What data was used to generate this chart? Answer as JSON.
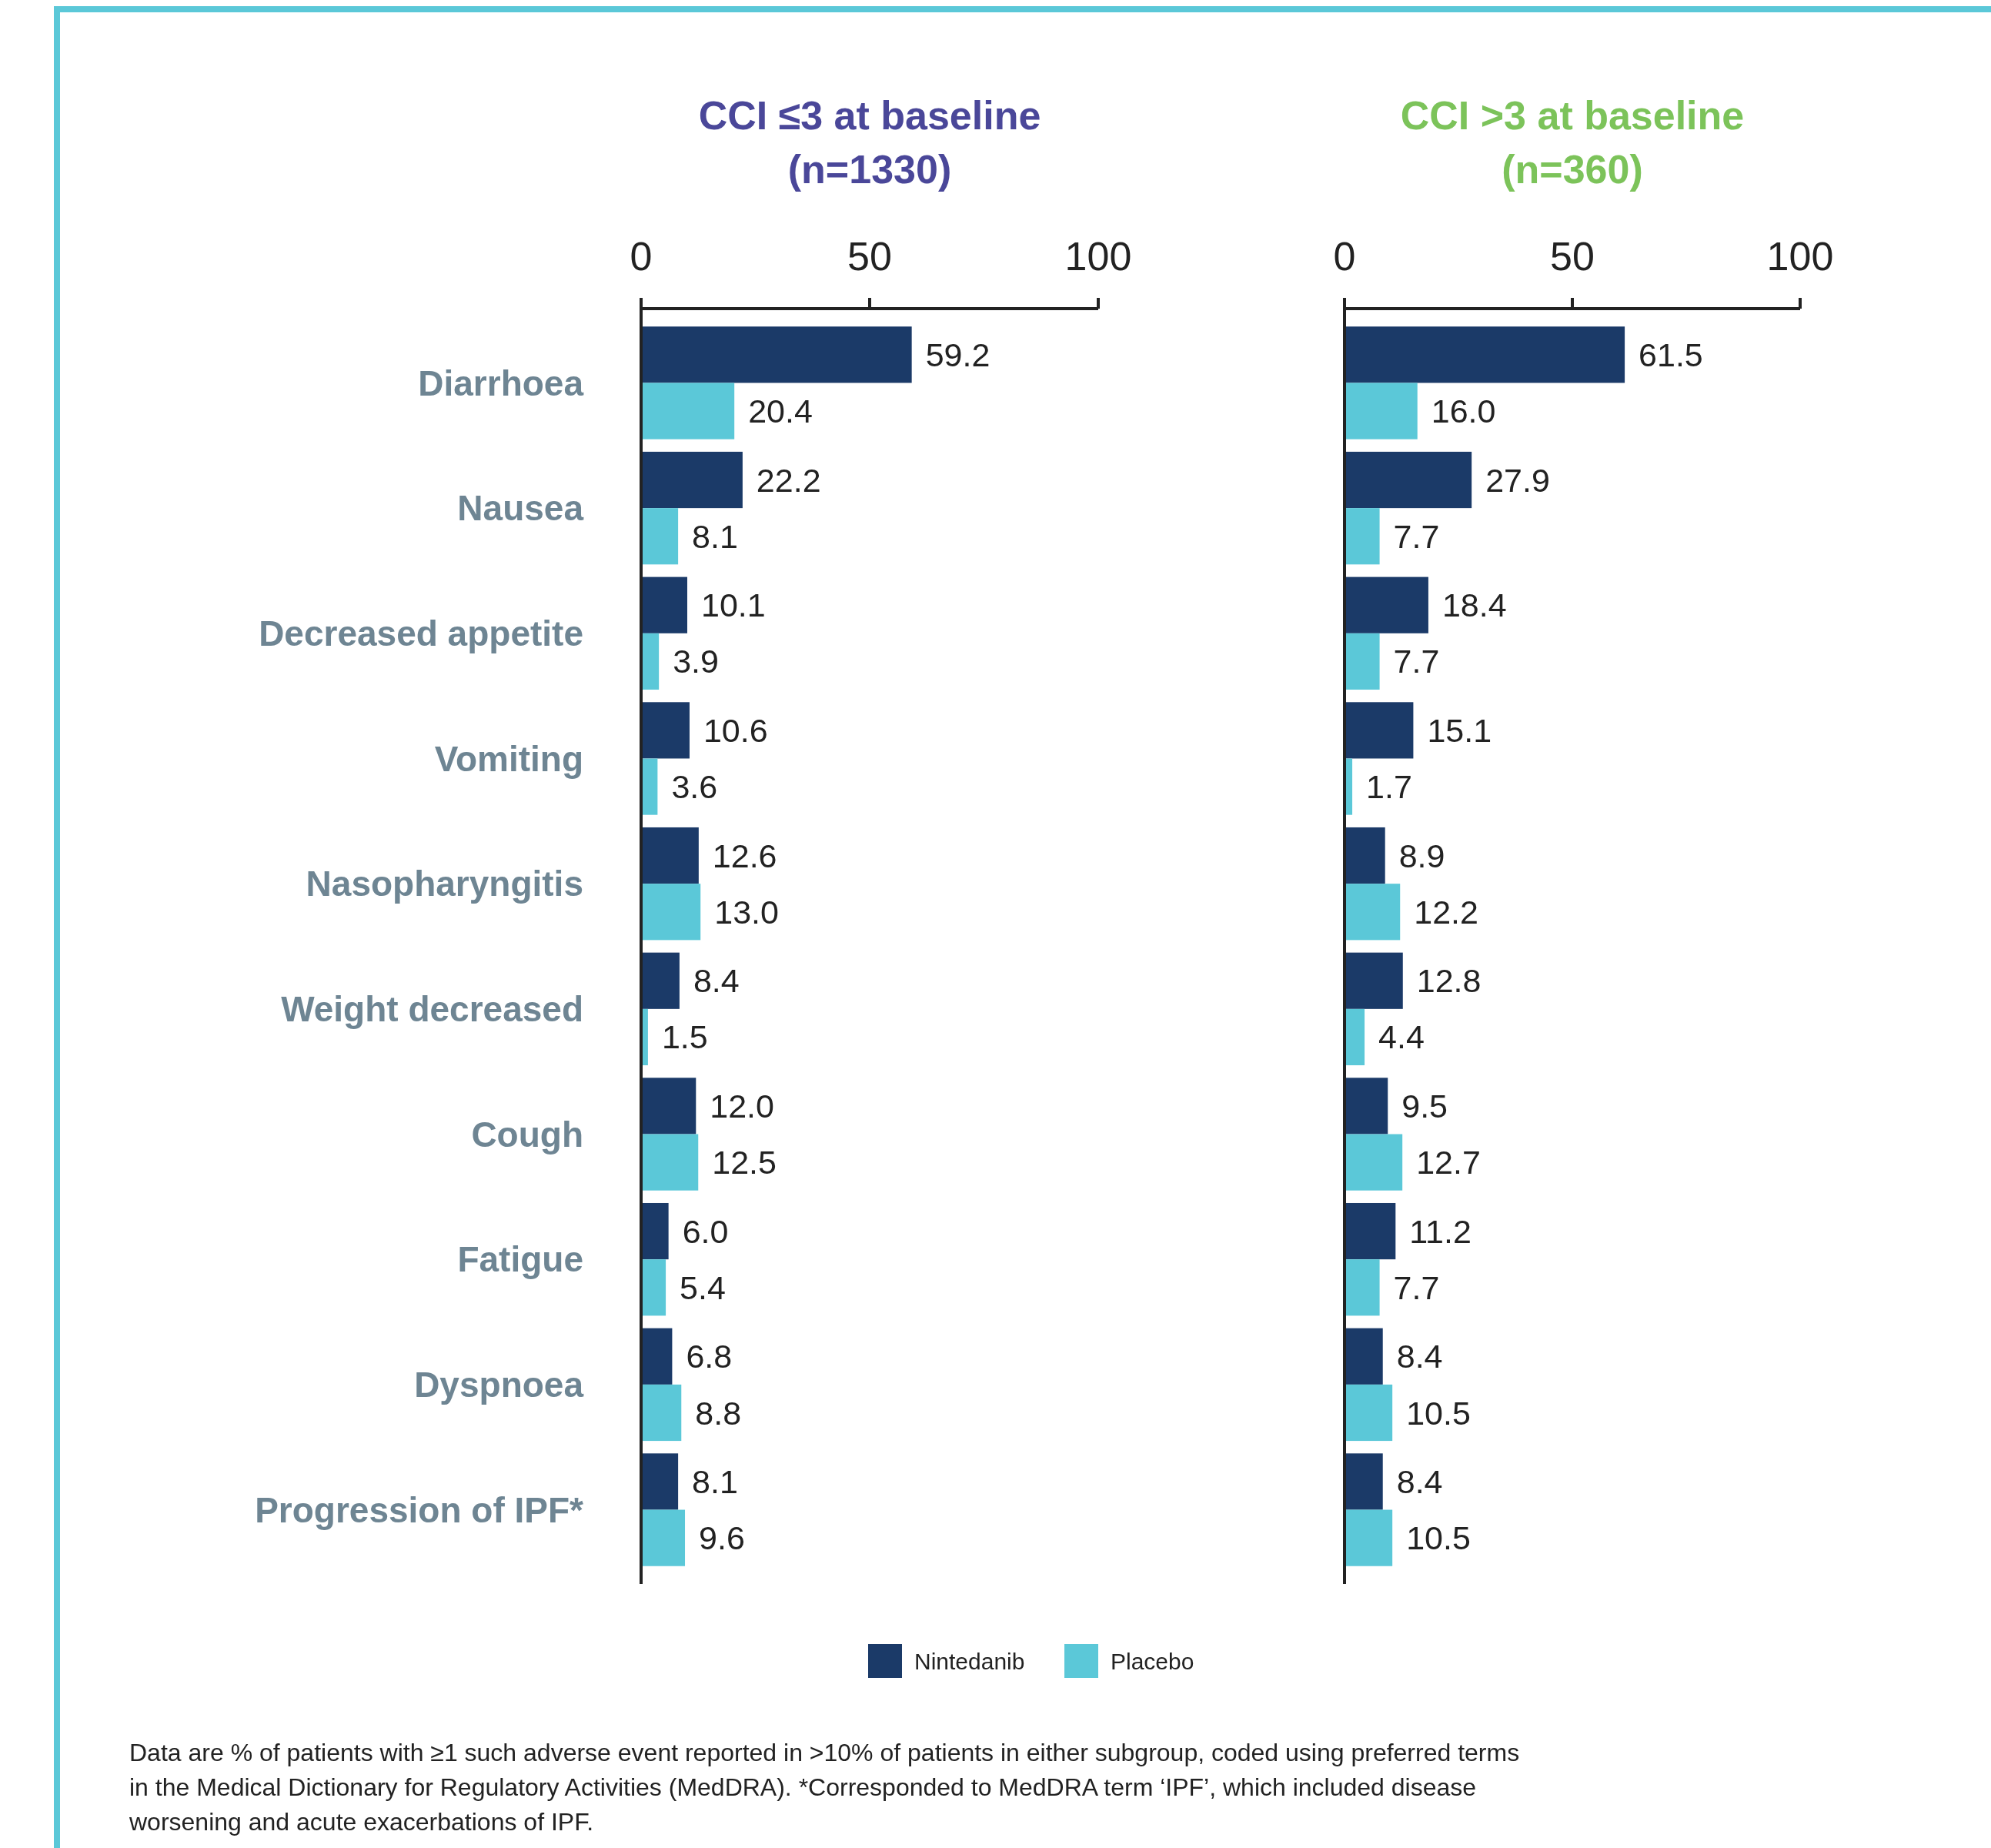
{
  "chart_data": [
    {
      "type": "bar",
      "orientation": "horizontal",
      "title": "CCI ≤3 at baseline\n(n=1330)",
      "categories": [
        "Diarrhoea",
        "Nausea",
        "Decreased appetite",
        "Vomiting",
        "Nasopharyngitis",
        "Weight decreased",
        "Cough",
        "Fatigue",
        "Dyspnoea",
        "Progression of IPF*"
      ],
      "series": [
        {
          "name": "Nintedanib",
          "color": "#1b3a68",
          "values": [
            59.2,
            22.2,
            10.1,
            10.6,
            12.6,
            8.4,
            12.0,
            6.0,
            6.8,
            8.1
          ],
          "value_labels": [
            "59.2",
            "22.2",
            "10.1",
            "10.6",
            "12.6",
            "8.4",
            "12.0",
            "6.0",
            "6.8",
            "8.1"
          ]
        },
        {
          "name": "Placebo",
          "color": "#5bc8d8",
          "values": [
            20.4,
            8.1,
            3.9,
            3.6,
            13.0,
            1.5,
            12.5,
            5.4,
            8.8,
            9.6
          ],
          "value_labels": [
            "20.4",
            "8.1",
            "3.9",
            "3.6",
            "13.0",
            "1.5",
            "12.5",
            "5.4",
            "8.8",
            "9.6"
          ]
        }
      ],
      "xlim": [
        0,
        100
      ],
      "xticks": [
        0,
        50,
        100
      ],
      "legend": "bottom",
      "annotations": [
        "Data are % of patients with ≥1 such adverse event reported in >10% of patients in either subgroup, coded using preferred terms in the Medical Dictionary for Regulatory Activities (MedDRA). *Corresponded to MedDRA term ‘IPF’, which included disease worsening and acute exacerbations of IPF."
      ]
    },
    {
      "type": "bar",
      "orientation": "horizontal",
      "title": "CCI >3 at baseline\n(n=360)",
      "categories": [
        null,
        null,
        null,
        null,
        null,
        null,
        null,
        null,
        null,
        null
      ],
      "series": [
        {
          "color": "#1b3a68",
          "values": [
            61.5,
            27.9,
            18.4,
            15.1,
            8.9,
            12.8,
            9.5,
            11.2,
            8.4,
            8.4
          ],
          "value_labels": [
            "61.5",
            "27.9",
            "18.4",
            "15.1",
            "8.9",
            "12.8",
            "9.5",
            "11.2",
            "8.4",
            "8.4"
          ]
        },
        {
          "color": "#5bc8d8",
          "values": [
            16.0,
            7.7,
            7.7,
            1.7,
            12.2,
            4.4,
            12.7,
            7.7,
            10.5,
            10.5
          ],
          "value_labels": [
            "16.0",
            "7.7",
            "7.7",
            "1.7",
            "12.2",
            "4.4",
            "12.7",
            "7.7",
            "10.5",
            "10.5"
          ]
        }
      ],
      "xlim": [
        0,
        100
      ],
      "xticks": [
        0,
        50,
        100
      ]
    }
  ]
}
